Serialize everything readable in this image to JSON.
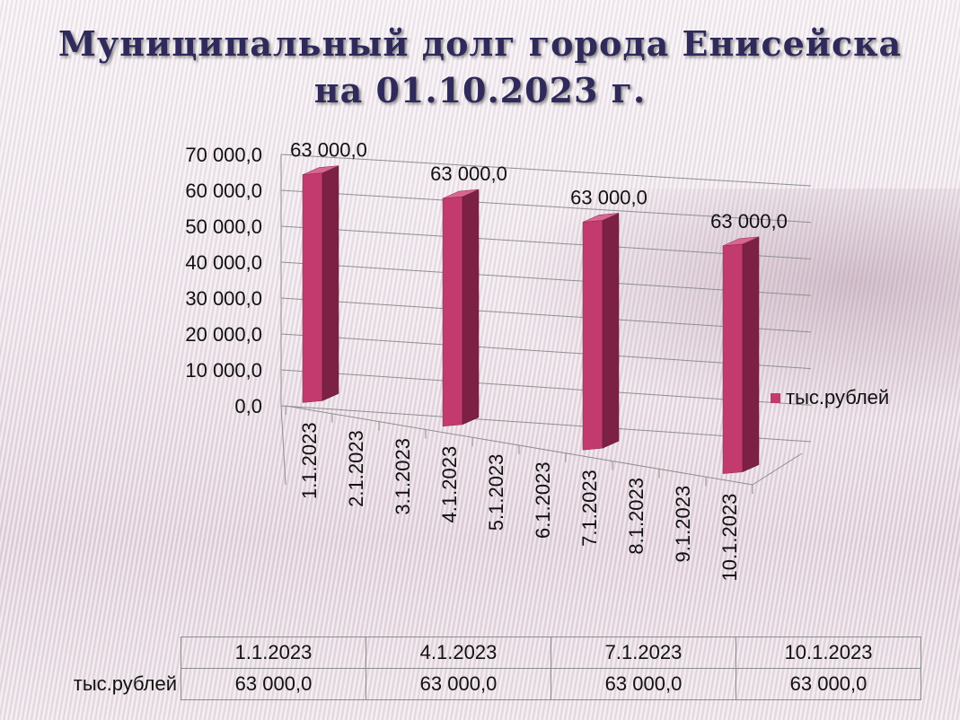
{
  "title": {
    "line1": "Муниципальный долг города Енисейска",
    "line2": "на 01.10.2023 г."
  },
  "colors": {
    "bar_front": "#c23a6e",
    "bar_side": "#7c2144",
    "bar_top": "#d8668f",
    "title": "#2f2a5a",
    "grid": "#8f8f8f"
  },
  "chart_data": {
    "type": "bar",
    "style": "3d-column",
    "categories": [
      "1.1.2023",
      "2.1.2023",
      "3.1.2023",
      "4.1.2023",
      "5.1.2023",
      "6.1.2023",
      "7.1.2023",
      "8.1.2023",
      "9.1.2023",
      "10.1.2023"
    ],
    "series": [
      {
        "name": "тыс.рублей",
        "values": [
          63000.0,
          null,
          null,
          63000.0,
          null,
          null,
          63000.0,
          null,
          null,
          63000.0
        ],
        "data_labels": [
          "63 000,0",
          "",
          "",
          "63 000,0",
          "",
          "",
          "63 000,0",
          "",
          "",
          "63 000,0"
        ]
      }
    ],
    "y_ticks": [
      "0,0",
      "10 000,0",
      "20 000,0",
      "30 000,0",
      "40 000,0",
      "50 000,0",
      "60 000,0",
      "70 000,0"
    ],
    "ylim": [
      0,
      70000
    ],
    "grid": true,
    "legend_position": "right",
    "data_table": {
      "columns": [
        "1.1.2023",
        "4.1.2023",
        "7.1.2023",
        "10.1.2023"
      ],
      "row_label": "тыс.рублей",
      "values": [
        "63 000,0",
        "63 000,0",
        "63 000,0",
        "63 000,0"
      ]
    }
  }
}
